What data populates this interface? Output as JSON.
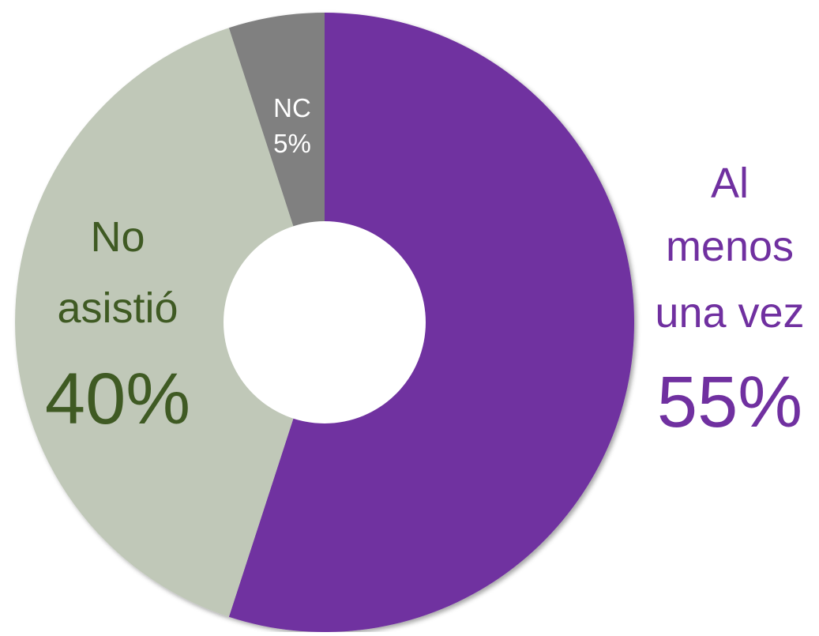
{
  "chart_data": {
    "type": "pie",
    "donut": true,
    "categories": [
      "Al menos una vez",
      "No asistió",
      "NC"
    ],
    "values": [
      55,
      40,
      5
    ],
    "unit": "%",
    "start_angle_deg": 0,
    "direction": "clockwise",
    "title": "",
    "legend": "none",
    "slices": [
      {
        "name": "Al menos una vez",
        "value": 55,
        "label_lines": [
          "Al",
          "menos",
          "una vez"
        ],
        "value_label": "55%",
        "fill": "#7030A0",
        "label_color": "#7030A0"
      },
      {
        "name": "No asistió",
        "value": 40,
        "label_lines": [
          "No",
          "asistió"
        ],
        "value_label": "40%",
        "fill": "#C0C8B8",
        "label_color": "#3F5A23"
      },
      {
        "name": "NC",
        "value": 5,
        "label_lines": [
          "NC"
        ],
        "value_label": "5%",
        "fill": "#808080",
        "label_color": "#FFFFFF"
      }
    ]
  }
}
